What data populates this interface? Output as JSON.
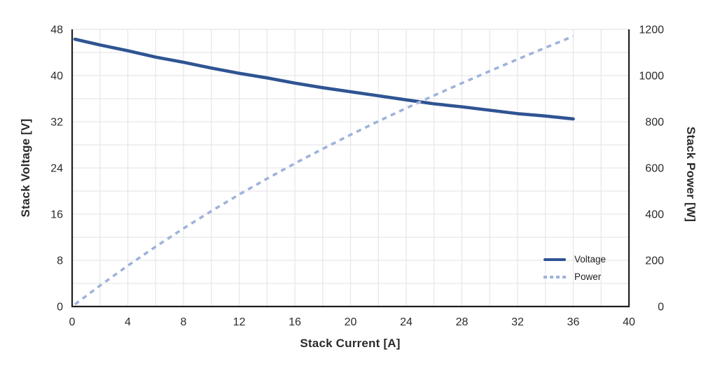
{
  "chart_data": {
    "type": "line",
    "title": "",
    "xlabel": "Stack Current [A]",
    "ylabel_left": "Stack Voltage [V]",
    "ylabel_right": "Stack Power [W]",
    "xlim": [
      0,
      40
    ],
    "ylim_left": [
      0,
      48
    ],
    "ylim_right": [
      0,
      1200
    ],
    "x_ticks": [
      0,
      4,
      8,
      12,
      16,
      20,
      24,
      28,
      32,
      36,
      40
    ],
    "y_left_ticks": [
      0,
      8,
      16,
      24,
      32,
      40,
      48
    ],
    "y_right_ticks": [
      0,
      200,
      400,
      600,
      800,
      1000,
      1200
    ],
    "grid": {
      "on": true,
      "x_step": 2,
      "y_left_step": 4
    },
    "legend_position": "bottom-right",
    "x": [
      0.2,
      2,
      4,
      6,
      8,
      10,
      12,
      14,
      16,
      18,
      20,
      22,
      24,
      26,
      28,
      30,
      32,
      34,
      36
    ],
    "series": [
      {
        "name": "Voltage",
        "axis": "left",
        "style": "solid",
        "color": "#2f5493",
        "values": [
          46.3,
          45.3,
          44.3,
          43.2,
          42.3,
          41.3,
          40.4,
          39.6,
          38.7,
          37.9,
          37.2,
          36.5,
          35.8,
          35.1,
          34.6,
          34.0,
          33.4,
          33.0,
          32.5
        ]
      },
      {
        "name": "Power",
        "axis": "right",
        "style": "dashed",
        "color": "#9fb3da",
        "values": [
          9.3,
          90.6,
          177.0,
          259.4,
          338.1,
          413.2,
          485.0,
          553.7,
          619.6,
          682.8,
          743.6,
          802.3,
          858.9,
          913.8,
          967.3,
          1019.4,
          1070.5,
          1120.8,
          1170.4
        ]
      }
    ]
  },
  "colors": {
    "voltage_line": "#2f5493",
    "power_line": "#9fb3da",
    "grid_line": "#e6e6e9",
    "axis_line": "#1f1f1f",
    "tick_text": "#2b2b2b",
    "background": "#ffffff"
  }
}
